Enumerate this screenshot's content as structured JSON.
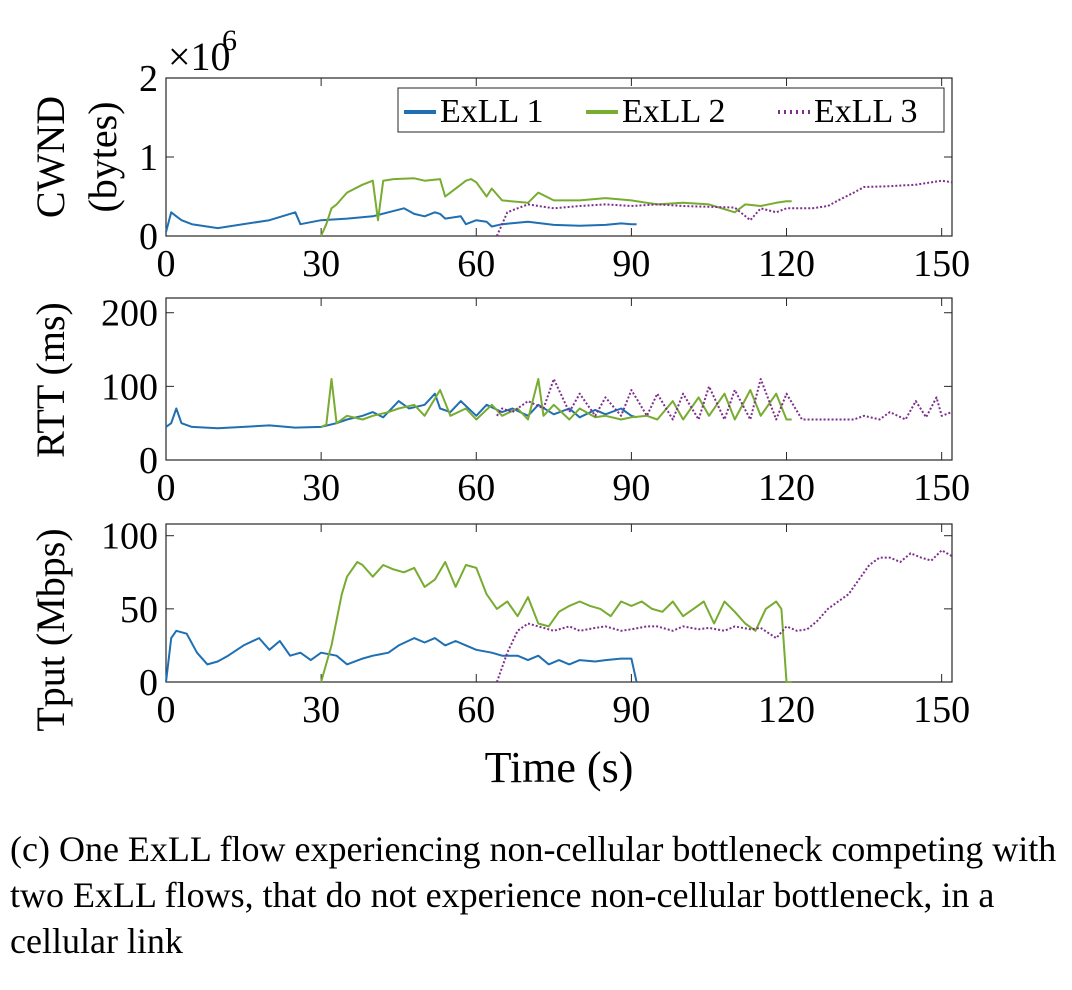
{
  "chart_data": [
    {
      "type": "line",
      "panel": "cwnd",
      "ylabel_line1": "CWND",
      "ylabel_line2": "(bytes)",
      "y_multiplier_base": "×10",
      "y_multiplier_exp": "6",
      "xlim": [
        0,
        152
      ],
      "ylim": [
        0,
        2
      ],
      "x_ticks": [
        "0",
        "30",
        "60",
        "90",
        "120",
        "150"
      ],
      "y_ticks": [
        "0",
        "1",
        "2"
      ],
      "legend_position": "top-right",
      "series": [
        {
          "name": "ExLL 1",
          "color": "#1f6fb2",
          "style": "solid",
          "x": [
            0,
            1,
            2,
            3,
            5,
            10,
            20,
            25,
            26,
            30,
            35,
            40,
            43,
            46,
            48,
            50,
            52,
            53,
            54,
            57,
            58,
            60,
            62,
            63,
            65,
            70,
            75,
            80,
            85,
            88,
            90,
            91
          ],
          "y": [
            0.05,
            0.3,
            0.25,
            0.2,
            0.15,
            0.1,
            0.2,
            0.3,
            0.15,
            0.2,
            0.22,
            0.25,
            0.3,
            0.35,
            0.28,
            0.25,
            0.3,
            0.28,
            0.22,
            0.25,
            0.15,
            0.2,
            0.18,
            0.12,
            0.15,
            0.18,
            0.14,
            0.13,
            0.14,
            0.16,
            0.15,
            0.15
          ]
        },
        {
          "name": "ExLL 2",
          "color": "#77ac30",
          "style": "solid",
          "x": [
            30,
            31,
            32,
            33,
            35,
            38,
            40,
            41,
            42,
            44,
            48,
            50,
            53,
            54,
            55,
            57,
            58,
            59,
            60,
            62,
            63,
            65,
            70,
            72,
            75,
            80,
            85,
            90,
            95,
            100,
            105,
            110,
            112,
            115,
            118,
            120,
            121
          ],
          "y": [
            0.0,
            0.15,
            0.35,
            0.4,
            0.55,
            0.65,
            0.7,
            0.2,
            0.7,
            0.72,
            0.73,
            0.7,
            0.72,
            0.5,
            0.55,
            0.65,
            0.7,
            0.72,
            0.68,
            0.5,
            0.6,
            0.45,
            0.42,
            0.55,
            0.45,
            0.45,
            0.48,
            0.45,
            0.4,
            0.42,
            0.4,
            0.3,
            0.4,
            0.38,
            0.42,
            0.44,
            0.44
          ]
        },
        {
          "name": "ExLL 3",
          "color": "#7e2f8e",
          "style": "dotted",
          "x": [
            64,
            65,
            66,
            68,
            70,
            75,
            80,
            85,
            90,
            95,
            100,
            105,
            110,
            113,
            115,
            118,
            120,
            125,
            128,
            130,
            133,
            135,
            140,
            145,
            150,
            152
          ],
          "y": [
            0.0,
            0.15,
            0.3,
            0.35,
            0.4,
            0.35,
            0.38,
            0.4,
            0.38,
            0.4,
            0.38,
            0.37,
            0.36,
            0.2,
            0.35,
            0.3,
            0.35,
            0.35,
            0.38,
            0.45,
            0.55,
            0.62,
            0.63,
            0.65,
            0.7,
            0.68
          ]
        }
      ]
    },
    {
      "type": "line",
      "panel": "rtt",
      "ylabel": "RTT (ms)",
      "xlim": [
        0,
        152
      ],
      "ylim": [
        0,
        220
      ],
      "x_ticks": [
        "0",
        "30",
        "60",
        "90",
        "120",
        "150"
      ],
      "y_ticks": [
        "0",
        "100",
        "200"
      ],
      "series": [
        {
          "name": "ExLL 1",
          "color": "#1f6fb2",
          "style": "solid",
          "x": [
            0,
            1,
            2,
            3,
            5,
            10,
            15,
            20,
            25,
            30,
            33,
            35,
            38,
            40,
            42,
            45,
            47,
            50,
            52,
            53,
            55,
            57,
            60,
            62,
            65,
            67,
            70,
            72,
            75,
            78,
            80,
            83,
            85,
            88,
            90,
            91
          ],
          "y": [
            45,
            50,
            70,
            50,
            45,
            43,
            45,
            47,
            44,
            45,
            50,
            55,
            60,
            65,
            58,
            80,
            70,
            75,
            90,
            70,
            65,
            80,
            60,
            75,
            65,
            70,
            60,
            75,
            62,
            70,
            58,
            68,
            62,
            70,
            60,
            58
          ]
        },
        {
          "name": "ExLL 2",
          "color": "#77ac30",
          "style": "solid",
          "x": [
            30,
            31,
            32,
            33,
            35,
            38,
            40,
            43,
            45,
            48,
            50,
            53,
            55,
            58,
            60,
            63,
            65,
            68,
            70,
            72,
            73,
            75,
            78,
            80,
            83,
            85,
            88,
            90,
            93,
            95,
            98,
            100,
            103,
            105,
            108,
            110,
            113,
            115,
            118,
            120,
            121
          ],
          "y": [
            45,
            48,
            110,
            50,
            60,
            55,
            60,
            65,
            70,
            75,
            60,
            95,
            60,
            70,
            55,
            75,
            60,
            70,
            55,
            110,
            60,
            75,
            55,
            70,
            58,
            60,
            55,
            58,
            60,
            55,
            80,
            55,
            85,
            60,
            90,
            55,
            95,
            60,
            90,
            55,
            55
          ]
        },
        {
          "name": "ExLL 3",
          "color": "#7e2f8e",
          "style": "dotted",
          "x": [
            64,
            65,
            67,
            70,
            73,
            75,
            78,
            80,
            83,
            85,
            88,
            90,
            93,
            95,
            98,
            100,
            103,
            105,
            108,
            110,
            113,
            115,
            118,
            120,
            123,
            125,
            128,
            130,
            133,
            135,
            138,
            140,
            143,
            145,
            147,
            149,
            150,
            152
          ],
          "y": [
            60,
            70,
            65,
            80,
            70,
            110,
            65,
            90,
            60,
            85,
            60,
            95,
            60,
            90,
            55,
            90,
            55,
            100,
            55,
            95,
            55,
            110,
            55,
            90,
            55,
            55,
            55,
            55,
            55,
            60,
            55,
            65,
            55,
            80,
            58,
            85,
            60,
            65
          ]
        }
      ]
    },
    {
      "type": "line",
      "panel": "tput",
      "ylabel": "Tput (Mbps)",
      "xlabel": "Time (s)",
      "xlim": [
        0,
        152
      ],
      "ylim": [
        0,
        108
      ],
      "x_ticks": [
        "0",
        "30",
        "60",
        "90",
        "120",
        "150"
      ],
      "y_ticks": [
        "0",
        "50",
        "100"
      ],
      "series": [
        {
          "name": "ExLL 1",
          "color": "#1f6fb2",
          "style": "solid",
          "x": [
            0,
            1,
            2,
            4,
            6,
            8,
            10,
            12,
            15,
            18,
            20,
            22,
            24,
            26,
            28,
            30,
            33,
            35,
            38,
            40,
            43,
            45,
            48,
            50,
            52,
            54,
            56,
            58,
            60,
            63,
            65,
            68,
            70,
            72,
            74,
            76,
            78,
            80,
            83,
            85,
            88,
            90,
            91
          ],
          "y": [
            0,
            30,
            35,
            33,
            20,
            12,
            14,
            18,
            25,
            30,
            22,
            28,
            18,
            20,
            15,
            20,
            18,
            12,
            16,
            18,
            20,
            25,
            30,
            27,
            30,
            25,
            28,
            25,
            22,
            20,
            18,
            18,
            15,
            18,
            12,
            15,
            12,
            15,
            14,
            15,
            16,
            16,
            0
          ]
        },
        {
          "name": "ExLL 2",
          "color": "#77ac30",
          "style": "solid",
          "x": [
            30,
            32,
            34,
            35,
            37,
            38,
            40,
            42,
            44,
            46,
            48,
            50,
            52,
            54,
            56,
            58,
            60,
            62,
            64,
            66,
            68,
            70,
            72,
            74,
            76,
            78,
            80,
            82,
            84,
            86,
            88,
            90,
            92,
            94,
            96,
            98,
            100,
            102,
            104,
            106,
            108,
            110,
            112,
            114,
            116,
            118,
            119,
            120,
            121
          ],
          "y": [
            0,
            25,
            60,
            72,
            82,
            80,
            72,
            80,
            77,
            75,
            78,
            65,
            70,
            82,
            65,
            80,
            78,
            60,
            50,
            55,
            45,
            58,
            40,
            38,
            48,
            52,
            55,
            52,
            50,
            45,
            55,
            52,
            55,
            50,
            48,
            55,
            45,
            50,
            55,
            40,
            55,
            48,
            40,
            35,
            50,
            55,
            50,
            0,
            0
          ]
        },
        {
          "name": "ExLL 3",
          "color": "#7e2f8e",
          "style": "dotted",
          "x": [
            64,
            66,
            68,
            70,
            72,
            75,
            78,
            80,
            83,
            85,
            88,
            90,
            93,
            95,
            98,
            100,
            103,
            105,
            108,
            110,
            113,
            115,
            118,
            120,
            122,
            124,
            126,
            128,
            130,
            132,
            134,
            136,
            138,
            140,
            142,
            144,
            146,
            148,
            150,
            152
          ],
          "y": [
            0,
            20,
            35,
            40,
            38,
            35,
            38,
            35,
            37,
            38,
            35,
            36,
            38,
            38,
            35,
            38,
            36,
            37,
            35,
            38,
            36,
            37,
            30,
            38,
            35,
            36,
            42,
            50,
            55,
            60,
            70,
            80,
            85,
            85,
            82,
            88,
            85,
            83,
            90,
            86
          ]
        }
      ]
    }
  ],
  "caption": "(c) One ExLL flow experiencing non-cellular bottleneck competing with two ExLL flows, that do not experience non-cellular bottleneck, in a cellular link"
}
